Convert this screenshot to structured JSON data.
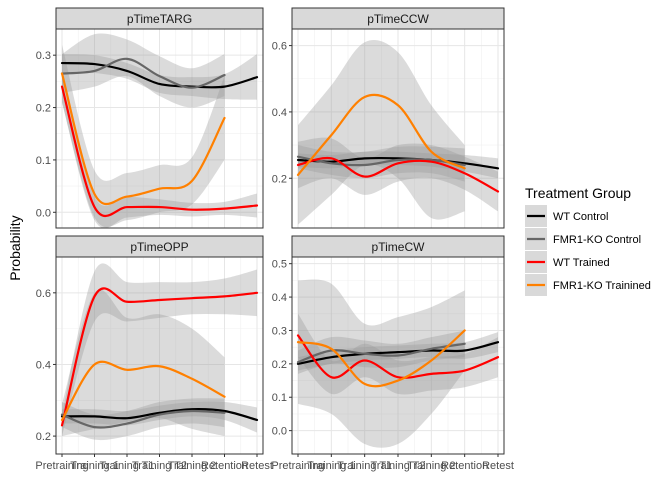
{
  "chart_data": {
    "type": "line",
    "ylabel": "Probability",
    "xlabel": "",
    "categories": [
      "Pretraining",
      "Training 1",
      "Training T1",
      "Training T2",
      "Training 2",
      "Retention",
      "Retest"
    ],
    "category_ticks_printed": [
      "Pretraining",
      "Training 1",
      "Training T1",
      "Training T2",
      "Training 2",
      "Retention",
      "Retest"
    ],
    "legend": {
      "title": "Treatment Group",
      "position": "right",
      "entries": [
        {
          "name": "WT Control",
          "color": "#000000"
        },
        {
          "name": "FMR1-KO Control",
          "color": "#666666"
        },
        {
          "name": "WT Trained",
          "color": "#ff0000"
        },
        {
          "name": "FMR1-KO Trainined",
          "color": "#ff8000"
        }
      ]
    },
    "grid": true,
    "band_color": "#999999",
    "panels": [
      {
        "title": "pTimeTARG",
        "ylim": [
          -0.03,
          0.35
        ],
        "yticks": [
          0.0,
          0.1,
          0.2,
          0.3
        ],
        "ytick_labels": [
          "0.0",
          "0.1",
          "0.2",
          "0.3"
        ],
        "series": [
          {
            "name": "WT Control",
            "x": [
              1,
              2,
              3,
              4,
              5,
              6,
              7
            ],
            "values": [
              0.285,
              0.283,
              0.27,
              0.245,
              0.24,
              0.24,
              0.258
            ],
            "lower": [
              0.268,
              0.266,
              0.255,
              0.228,
              0.222,
              0.216,
              0.215
            ],
            "upper": [
              0.302,
              0.3,
              0.285,
              0.262,
              0.258,
              0.264,
              0.302
            ]
          },
          {
            "name": "FMR1-KO Control",
            "x": [
              1,
              2,
              3,
              4,
              5,
              6
            ],
            "values": [
              0.265,
              0.27,
              0.293,
              0.26,
              0.238,
              0.262
            ],
            "lower": [
              0.228,
              0.24,
              0.26,
              0.222,
              0.2,
              0.222
            ],
            "upper": [
              0.302,
              0.34,
              0.33,
              0.298,
              0.275,
              0.302
            ]
          },
          {
            "name": "WT Trained",
            "x": [
              1,
              2,
              3,
              4,
              5,
              6,
              7
            ],
            "values": [
              0.24,
              0.01,
              0.01,
              0.01,
              0.005,
              0.007,
              0.013
            ],
            "lower": [
              0.21,
              -0.015,
              -0.01,
              -0.005,
              -0.008,
              -0.005,
              -0.01
            ],
            "upper": [
              0.27,
              0.03,
              0.03,
              0.025,
              0.018,
              0.02,
              0.036
            ]
          },
          {
            "name": "FMR1-KO Trainined",
            "x": [
              1,
              2,
              3,
              4,
              5,
              6
            ],
            "values": [
              0.265,
              0.035,
              0.03,
              0.045,
              0.06,
              0.18
            ],
            "lower": [
              0.21,
              -0.01,
              -0.015,
              0.0,
              0.015,
              0.1
            ],
            "upper": [
              0.32,
              0.08,
              0.075,
              0.09,
              0.105,
              0.26
            ]
          }
        ]
      },
      {
        "title": "pTimeCCW",
        "ylim": [
          0.05,
          0.65
        ],
        "yticks": [
          0.2,
          0.4,
          0.6
        ],
        "ytick_labels": [
          "0.2",
          "0.4",
          "0.6"
        ],
        "series": [
          {
            "name": "WT Control",
            "x": [
              1,
              2,
              3,
              4,
              5,
              6,
              7
            ],
            "values": [
              0.255,
              0.25,
              0.26,
              0.26,
              0.255,
              0.245,
              0.23
            ],
            "lower": [
              0.235,
              0.23,
              0.24,
              0.24,
              0.235,
              0.22,
              0.2
            ],
            "upper": [
              0.275,
              0.27,
              0.28,
              0.28,
              0.275,
              0.27,
              0.26
            ]
          },
          {
            "name": "FMR1-KO Control",
            "x": [
              1,
              2,
              3,
              4,
              5,
              6
            ],
            "values": [
              0.265,
              0.245,
              0.24,
              0.255,
              0.255,
              0.24
            ],
            "lower": [
              0.23,
              0.21,
              0.2,
              0.215,
              0.215,
              0.19
            ],
            "upper": [
              0.3,
              0.28,
              0.28,
              0.295,
              0.295,
              0.29
            ]
          },
          {
            "name": "WT Trained",
            "x": [
              1,
              2,
              3,
              4,
              5,
              6,
              7
            ],
            "values": [
              0.24,
              0.26,
              0.205,
              0.245,
              0.25,
              0.215,
              0.16
            ],
            "lower": [
              0.17,
              0.2,
              0.15,
              0.19,
              0.2,
              0.165,
              0.1
            ],
            "upper": [
              0.31,
              0.32,
              0.26,
              0.3,
              0.3,
              0.265,
              0.22
            ]
          },
          {
            "name": "FMR1-KO Trainined",
            "x": [
              1,
              2,
              3,
              4,
              5,
              6
            ],
            "values": [
              0.21,
              0.33,
              0.445,
              0.42,
              0.28,
              0.23
            ],
            "lower": [
              0.06,
              0.15,
              0.24,
              0.2,
              0.08,
              0.1
            ],
            "upper": [
              0.36,
              0.48,
              0.61,
              0.58,
              0.42,
              0.3
            ]
          }
        ]
      },
      {
        "title": "pTimeOPP",
        "ylim": [
          0.15,
          0.7
        ],
        "yticks": [
          0.2,
          0.4,
          0.6
        ],
        "ytick_labels": [
          "0.2",
          "0.4",
          "0.6"
        ],
        "series": [
          {
            "name": "WT Control",
            "x": [
              1,
              2,
              3,
              4,
              5,
              6,
              7
            ],
            "values": [
              0.255,
              0.255,
              0.25,
              0.265,
              0.275,
              0.27,
              0.245
            ],
            "lower": [
              0.235,
              0.235,
              0.23,
              0.245,
              0.255,
              0.245,
              0.21
            ],
            "upper": [
              0.275,
              0.275,
              0.27,
              0.285,
              0.295,
              0.295,
              0.28
            ]
          },
          {
            "name": "FMR1-KO Control",
            "x": [
              1,
              2,
              3,
              4,
              5,
              6
            ],
            "values": [
              0.26,
              0.225,
              0.235,
              0.26,
              0.27,
              0.265
            ],
            "lower": [
              0.225,
              0.19,
              0.2,
              0.225,
              0.235,
              0.225
            ],
            "upper": [
              0.295,
              0.26,
              0.27,
              0.295,
              0.305,
              0.305
            ]
          },
          {
            "name": "WT Trained",
            "x": [
              1,
              2,
              3,
              4,
              5,
              6,
              7
            ],
            "values": [
              0.23,
              0.59,
              0.575,
              0.58,
              0.585,
              0.59,
              0.6
            ],
            "lower": [
              0.2,
              0.52,
              0.52,
              0.53,
              0.54,
              0.54,
              0.535
            ],
            "upper": [
              0.26,
              0.66,
              0.63,
              0.63,
              0.63,
              0.64,
              0.665
            ]
          },
          {
            "name": "FMR1-KO Trainined",
            "x": [
              1,
              2,
              3,
              4,
              5,
              6
            ],
            "values": [
              0.245,
              0.4,
              0.385,
              0.395,
              0.36,
              0.31
            ],
            "lower": [
              0.2,
              0.22,
              0.24,
              0.25,
              0.22,
              0.2
            ],
            "upper": [
              0.29,
              0.6,
              0.53,
              0.54,
              0.5,
              0.42
            ]
          }
        ]
      },
      {
        "title": "pTimeCW",
        "ylim": [
          -0.07,
          0.52
        ],
        "yticks": [
          0.0,
          0.1,
          0.2,
          0.3,
          0.4,
          0.5
        ],
        "ytick_labels": [
          "0.0",
          "0.1",
          "0.2",
          "0.3",
          "0.4",
          "0.5"
        ],
        "series": [
          {
            "name": "WT Control",
            "x": [
              1,
              2,
              3,
              4,
              5,
              6,
              7
            ],
            "values": [
              0.2,
              0.22,
              0.23,
              0.235,
              0.24,
              0.24,
              0.265
            ],
            "lower": [
              0.18,
              0.2,
              0.21,
              0.215,
              0.22,
              0.215,
              0.235
            ],
            "upper": [
              0.22,
              0.24,
              0.25,
              0.255,
              0.26,
              0.265,
              0.295
            ]
          },
          {
            "name": "FMR1-KO Control",
            "x": [
              1,
              2,
              3,
              4,
              5,
              6
            ],
            "values": [
              0.205,
              0.24,
              0.23,
              0.225,
              0.245,
              0.26
            ],
            "lower": [
              0.17,
              0.2,
              0.19,
              0.19,
              0.21,
              0.22
            ],
            "upper": [
              0.24,
              0.28,
              0.27,
              0.26,
              0.28,
              0.3
            ]
          },
          {
            "name": "WT Trained",
            "x": [
              1,
              2,
              3,
              4,
              5,
              6,
              7
            ],
            "values": [
              0.285,
              0.16,
              0.21,
              0.16,
              0.17,
              0.18,
              0.22
            ],
            "lower": [
              0.22,
              0.11,
              0.16,
              0.11,
              0.12,
              0.13,
              0.16
            ],
            "upper": [
              0.35,
              0.21,
              0.26,
              0.21,
              0.22,
              0.23,
              0.28
            ]
          },
          {
            "name": "FMR1-KO Trainined",
            "x": [
              1,
              2,
              3,
              4,
              5,
              6
            ],
            "values": [
              0.265,
              0.245,
              0.14,
              0.15,
              0.21,
              0.3
            ],
            "lower": [
              0.08,
              0.05,
              -0.04,
              -0.04,
              0.05,
              0.18
            ],
            "upper": [
              0.45,
              0.44,
              0.32,
              0.34,
              0.37,
              0.42
            ]
          }
        ]
      }
    ]
  }
}
